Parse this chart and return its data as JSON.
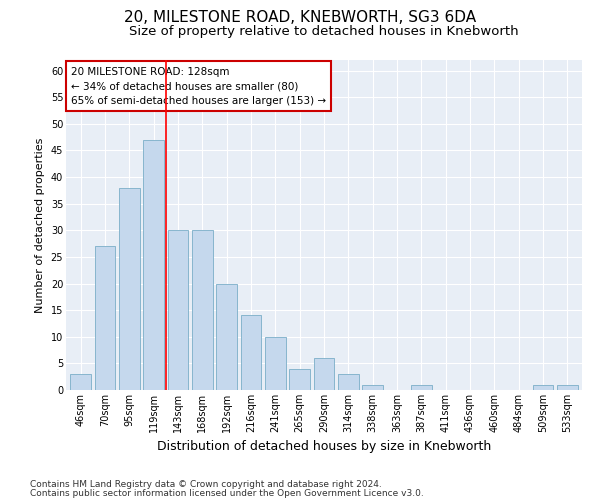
{
  "title": "20, MILESTONE ROAD, KNEBWORTH, SG3 6DA",
  "subtitle": "Size of property relative to detached houses in Knebworth",
  "xlabel": "Distribution of detached houses by size in Knebworth",
  "ylabel": "Number of detached properties",
  "bar_labels": [
    "46sqm",
    "70sqm",
    "95sqm",
    "119sqm",
    "143sqm",
    "168sqm",
    "192sqm",
    "216sqm",
    "241sqm",
    "265sqm",
    "290sqm",
    "314sqm",
    "338sqm",
    "363sqm",
    "387sqm",
    "411sqm",
    "436sqm",
    "460sqm",
    "484sqm",
    "509sqm",
    "533sqm"
  ],
  "bar_values": [
    3,
    27,
    38,
    47,
    30,
    30,
    20,
    14,
    10,
    4,
    6,
    3,
    1,
    0,
    1,
    0,
    0,
    0,
    0,
    1,
    1
  ],
  "bar_color": "#c5d8ed",
  "bar_edge_color": "#7aaec8",
  "ylim": [
    0,
    62
  ],
  "yticks": [
    0,
    5,
    10,
    15,
    20,
    25,
    30,
    35,
    40,
    45,
    50,
    55,
    60
  ],
  "red_line_x": 3.52,
  "annotation_text": "20 MILESTONE ROAD: 128sqm\n← 34% of detached houses are smaller (80)\n65% of semi-detached houses are larger (153) →",
  "annotation_box_color": "#ffffff",
  "annotation_box_edge_color": "#cc0000",
  "footnote1": "Contains HM Land Registry data © Crown copyright and database right 2024.",
  "footnote2": "Contains public sector information licensed under the Open Government Licence v3.0.",
  "plot_bg_color": "#e8eef6",
  "fig_bg_color": "#ffffff",
  "grid_color": "#ffffff",
  "title_fontsize": 11,
  "subtitle_fontsize": 9.5,
  "xlabel_fontsize": 9,
  "ylabel_fontsize": 8,
  "tick_fontsize": 7,
  "annotation_fontsize": 7.5,
  "footnote_fontsize": 6.5
}
